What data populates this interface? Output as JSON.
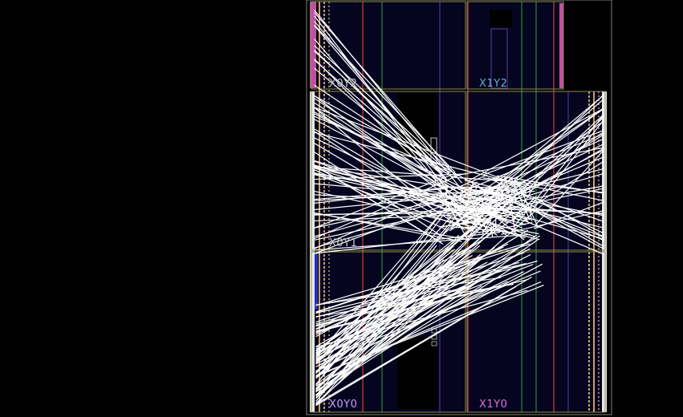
{
  "device": {
    "clock_regions": [
      {
        "id": "X0Y2",
        "label": "X0Y2",
        "label_color": "#c8c8c8"
      },
      {
        "id": "X1Y2",
        "label": "X1Y2",
        "label_color": "#5fb0d0"
      },
      {
        "id": "X0Y1",
        "label": "X0Y1",
        "label_color": "#c8c8c8"
      },
      {
        "id": "X1Y1",
        "label": "",
        "label_color": "#c8c8c8"
      },
      {
        "id": "X0Y0",
        "label": "X0Y0",
        "label_color": "#c8a0ff"
      },
      {
        "id": "X1Y0",
        "label": "X1Y0",
        "label_color": "#e070e0"
      }
    ],
    "colors": {
      "background": "#000000",
      "fabric": "#05051f",
      "region_border": "#8a8a50",
      "device_outline": "#808080",
      "route_lines": "#ffffff",
      "io_bank_blue": "#2030c0",
      "io_bank_pink": "#c050a0",
      "column_tan": "#c8a060",
      "column_red": "#b03030",
      "column_green": "#207030",
      "column_violet": "#6040a0"
    }
  }
}
